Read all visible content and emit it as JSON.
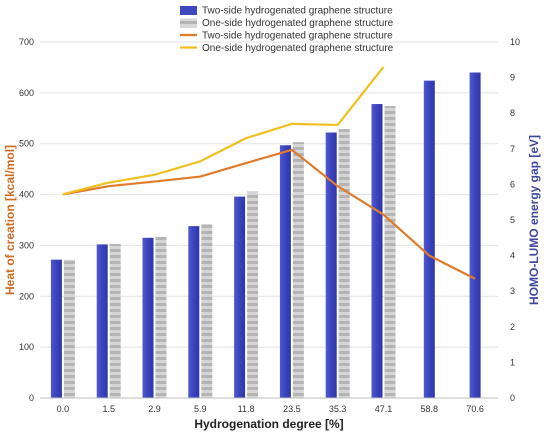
{
  "chart_data": {
    "type": "bar+line",
    "categories": [
      "0.0",
      "1.5",
      "2.9",
      "5.9",
      "11.8",
      "23.5",
      "35.3",
      "47.1",
      "58.8",
      "70.6"
    ],
    "bar_series": [
      {
        "name": "Two-side hydrogenated graphene structure",
        "axis": "left",
        "color": "#3f48c0",
        "values": [
          272,
          302,
          315,
          338,
          396,
          497,
          522,
          578,
          624,
          640
        ]
      },
      {
        "name": "One-side hydrogenated graphene structure",
        "axis": "left",
        "color": "#a9a9a9",
        "values": [
          272,
          303,
          317,
          342,
          406,
          503,
          529,
          574,
          null,
          null
        ]
      }
    ],
    "line_series": [
      {
        "name": "Two-side hydrogenated graphene structure",
        "axis": "right",
        "color": "#e07b2c",
        "values": [
          5.72,
          5.95,
          6.08,
          6.22,
          6.6,
          6.97,
          5.95,
          5.15,
          4.0,
          3.35
        ]
      },
      {
        "name": "One-side hydrogenated graphene structure",
        "axis": "right",
        "color": "#f0c020",
        "values": [
          5.72,
          6.05,
          6.27,
          6.65,
          7.3,
          7.7,
          7.67,
          9.3,
          null,
          null
        ]
      }
    ],
    "xlabel": "Hydrogenation degree [%]",
    "ylabel_left": "Heat of creation [kcal/mol]",
    "ylabel_right": "HOMO-LUMO energy gap [eV]",
    "ylim_left": [
      0,
      700
    ],
    "ylim_right": [
      0,
      10
    ],
    "yticks_left": [
      "0",
      "100",
      "200",
      "300",
      "400",
      "500",
      "600",
      "700"
    ],
    "yticks_right": [
      "0",
      "1",
      "2",
      "3",
      "4",
      "5",
      "6",
      "7",
      "8",
      "9",
      "10"
    ],
    "ylabel_left_color": "#d06a1f",
    "ylabel_right_color": "#3f48a0",
    "grid": "horizontal",
    "legend_position": "top-center"
  }
}
